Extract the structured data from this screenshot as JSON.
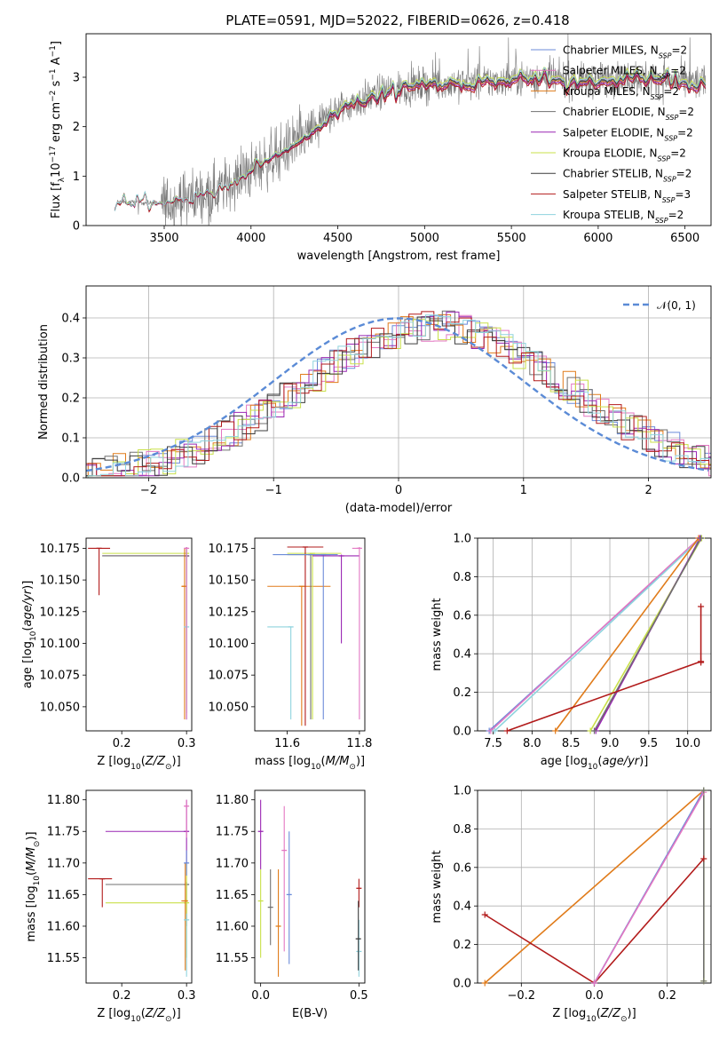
{
  "figure_title": "PLATE=0591, MJD=52022, FIBERID=0626, z=0.418",
  "colors": {
    "chabrier_miles": "#6b8bd9",
    "salpeter_miles": "#e377c2",
    "kroupa_miles": "#e07b1a",
    "chabrier_elodie": "#707070",
    "salpeter_elodie": "#9a27b3",
    "kroupa_elodie": "#c9e04a",
    "chabrier_stelib": "#3c3c3c",
    "salpeter_stelib": "#b21b1b",
    "kroupa_stelib": "#8fd3de",
    "gauss": "#5b8bd6"
  },
  "chart_data": [
    {
      "type": "line",
      "name": "spectrum",
      "title": "PLATE=0591, MJD=52022, FIBERID=0626, z=0.418",
      "xlabel": "wavelength [Angstrom, rest frame]",
      "ylabel": "Flux [f_λ 10^-17 erg cm^-2 s^-1 A^-1]",
      "xlim": [
        3050,
        6650
      ],
      "ylim": [
        0,
        3.88
      ],
      "xticks": [
        3500,
        4000,
        4500,
        5000,
        5500,
        6000,
        6500
      ],
      "yticks": [
        0,
        1,
        2,
        3
      ],
      "grid": false,
      "legend_position": "top-right",
      "data_continuum": [
        [
          3215,
          0.3
        ],
        [
          3230,
          0.48
        ],
        [
          3500,
          0.45
        ],
        [
          3800,
          0.7
        ],
        [
          4000,
          1.1
        ],
        [
          4300,
          1.75
        ],
        [
          4500,
          2.35
        ],
        [
          4800,
          2.75
        ],
        [
          5000,
          2.85
        ],
        [
          5300,
          2.9
        ],
        [
          5600,
          3.0
        ],
        [
          5900,
          2.92
        ],
        [
          6200,
          3.0
        ],
        [
          6500,
          2.9
        ]
      ],
      "series": [
        {
          "legend": "Chabrier MILES, N_SSP=2",
          "color_key": "chabrier_miles",
          "scale": 1.0
        },
        {
          "legend": "Salpeter MILES, N_SSP=2",
          "color_key": "salpeter_miles",
          "scale": 1.01
        },
        {
          "legend": "Kroupa MILES, N_SSP=2",
          "color_key": "kroupa_miles",
          "scale": 0.99
        },
        {
          "legend": "Chabrier ELODIE, N_SSP=2",
          "color_key": "chabrier_elodie",
          "scale": 1.0
        },
        {
          "legend": "Salpeter ELODIE, N_SSP=2",
          "color_key": "salpeter_elodie",
          "scale": 0.98
        },
        {
          "legend": "Kroupa ELODIE, N_SSP=2",
          "color_key": "kroupa_elodie",
          "scale": 1.02
        },
        {
          "legend": "Chabrier STELIB, N_SSP=2",
          "color_key": "chabrier_stelib",
          "scale": 1.0
        },
        {
          "legend": "Salpeter STELIB, N_SSP=3",
          "color_key": "salpeter_stelib",
          "scale": 0.97
        },
        {
          "legend": "Kroupa STELIB, N_SSP=2",
          "color_key": "kroupa_stelib",
          "scale": 1.01
        }
      ]
    },
    {
      "type": "histogram",
      "name": "residuals",
      "xlabel": "(data-model)/error",
      "ylabel": "Normed distribution",
      "xlim": [
        -2.5,
        2.5
      ],
      "ylim": [
        0,
        0.48
      ],
      "xticks": [
        -2,
        -1,
        0,
        1,
        2
      ],
      "yticks": [
        0.0,
        0.1,
        0.2,
        0.3,
        0.4
      ],
      "grid": true,
      "legend_position": "top-right",
      "gauss_legend": "N(0,1)",
      "bin_width": 0.1
    },
    {
      "type": "errorbar",
      "name": "age-vs-Z",
      "xlabel": "Z [log10(Z/Z⊙)]",
      "ylabel": "age  [log10(age/yr)]",
      "xlim": [
        0.145,
        0.308
      ],
      "ylim": [
        10.031,
        10.183
      ],
      "xticks": [
        0.2,
        0.3
      ],
      "yticks": [
        10.05,
        10.075,
        10.1,
        10.125,
        10.15,
        10.175
      ],
      "points": [
        {
          "c": "salpeter_stelib",
          "x": 0.165,
          "y": 10.175,
          "xl": 0.148,
          "xh": 0.182,
          "yl": 10.138,
          "yh": 10.175
        },
        {
          "c": "salpeter_elodie",
          "x": 0.3,
          "y": 10.169,
          "xl": 0.17,
          "xh": 0.3,
          "yl": 10.04,
          "yh": 10.176
        },
        {
          "c": "kroupa_elodie",
          "x": 0.3,
          "y": 10.171,
          "xl": 0.17,
          "xh": 0.3,
          "yl": 10.05,
          "yh": 10.176
        },
        {
          "c": "chabrier_elodie",
          "x": 0.3,
          "y": 10.169,
          "xl": 0.17,
          "xh": 0.3,
          "yl": 10.045,
          "yh": 10.176
        },
        {
          "c": "kroupa_miles",
          "x": 0.297,
          "y": 10.145,
          "xl": 0.292,
          "xh": 0.3,
          "yl": 10.04,
          "yh": 10.175
        },
        {
          "c": "kroupa_stelib",
          "x": 0.3,
          "y": 10.113,
          "xl": 0.299,
          "xh": 0.301,
          "yl": 10.04,
          "yh": 10.176
        },
        {
          "c": "salpeter_miles",
          "x": 0.3,
          "y": 10.175,
          "xl": 0.297,
          "xh": 0.302,
          "yl": 10.04,
          "yh": 10.176
        }
      ]
    },
    {
      "type": "errorbar",
      "name": "age-vs-mass",
      "xlabel": "mass [log10(M/M⊙)]",
      "xlim": [
        11.51,
        11.815
      ],
      "ylim": [
        10.031,
        10.183
      ],
      "xticks": [
        11.6,
        11.8
      ],
      "yticks": [
        10.05,
        10.075,
        10.1,
        10.125,
        10.15,
        10.175
      ],
      "points": [
        {
          "c": "kroupa_stelib",
          "x": 11.61,
          "y": 10.113,
          "xl": 11.545,
          "xh": 11.61,
          "yl": 10.04,
          "yh": 10.113
        },
        {
          "c": "kroupa_miles",
          "x": 11.64,
          "y": 10.145,
          "xl": 11.545,
          "xh": 11.72,
          "yl": 10.035,
          "yh": 10.145
        },
        {
          "c": "chabrier_elodie",
          "x": 11.665,
          "y": 10.17,
          "xl": 11.6,
          "xh": 11.72,
          "yl": 10.04,
          "yh": 10.171
        },
        {
          "c": "kroupa_elodie",
          "x": 11.67,
          "y": 10.171,
          "xl": 11.6,
          "xh": 11.75,
          "yl": 10.04,
          "yh": 10.171
        },
        {
          "c": "salpeter_stelib",
          "x": 11.65,
          "y": 10.176,
          "xl": 11.6,
          "xh": 11.7,
          "yl": 10.035,
          "yh": 10.176
        },
        {
          "c": "chabrier_miles",
          "x": 11.7,
          "y": 10.17,
          "xl": 11.56,
          "xh": 11.74,
          "yl": 10.04,
          "yh": 10.17
        },
        {
          "c": "salpeter_elodie",
          "x": 11.75,
          "y": 10.169,
          "xl": 11.67,
          "xh": 11.8,
          "yl": 10.1,
          "yh": 10.17
        },
        {
          "c": "salpeter_miles",
          "x": 11.8,
          "y": 10.175,
          "xl": 11.78,
          "xh": 11.8,
          "yl": 10.04,
          "yh": 10.176
        }
      ]
    },
    {
      "type": "line",
      "name": "weight-vs-age",
      "xlabel": "age  [log10(age/yr)]",
      "ylabel": "mass weight",
      "xlim": [
        7.3,
        10.3
      ],
      "ylim": [
        0,
        1.0
      ],
      "xticks": [
        7.5,
        8.0,
        8.5,
        9.0,
        9.5,
        10.0
      ],
      "yticks": [
        0.0,
        0.2,
        0.4,
        0.6,
        0.8,
        1.0
      ],
      "grid": true,
      "series": [
        {
          "c": "chabrier_miles",
          "x": [
            7.45,
            10.17
          ],
          "y": [
            0.0,
            1.0
          ]
        },
        {
          "c": "salpeter_miles",
          "x": [
            7.47,
            10.15
          ],
          "y": [
            0.0,
            1.0
          ]
        },
        {
          "c": "kroupa_stelib",
          "x": [
            7.52,
            10.17
          ],
          "y": [
            0.0,
            1.0
          ]
        },
        {
          "c": "kroupa_miles",
          "x": [
            8.3,
            10.14
          ],
          "y": [
            0.0,
            1.0
          ]
        },
        {
          "c": "kroupa_elodie",
          "x": [
            8.75,
            10.18
          ],
          "y": [
            0.0,
            1.0
          ]
        },
        {
          "c": "salpeter_elodie",
          "x": [
            8.82,
            10.16
          ],
          "y": [
            0.0,
            1.0
          ]
        },
        {
          "c": "chabrier_elodie",
          "x": [
            8.8,
            10.17
          ],
          "y": [
            0.0,
            1.0
          ]
        },
        {
          "c": "salpeter_stelib",
          "x": [
            7.68,
            10.17
          ],
          "y": [
            0.0,
            0.36
          ]
        },
        {
          "c": "salpeter_stelib",
          "x": [
            10.17,
            10.17
          ],
          "y": [
            0.355,
            0.645
          ]
        }
      ]
    },
    {
      "type": "errorbar",
      "name": "mass-vs-Z",
      "xlabel": "Z [log10(Z/Z⊙)]",
      "ylabel": "mass [log10(M/M⊙)]",
      "xlim": [
        0.145,
        0.308
      ],
      "ylim": [
        11.51,
        11.815
      ],
      "xticks": [
        0.2,
        0.3
      ],
      "yticks": [
        11.55,
        11.6,
        11.65,
        11.7,
        11.75,
        11.8
      ],
      "points": [
        {
          "c": "salpeter_stelib",
          "x": 0.17,
          "y": 11.675,
          "xl": 0.148,
          "xh": 0.185,
          "yl": 11.63,
          "yh": 11.675
        },
        {
          "c": "salpeter_elodie",
          "x": 0.3,
          "y": 11.75,
          "xl": 0.175,
          "xh": 0.3,
          "yl": 11.7,
          "yh": 11.8
        },
        {
          "c": "chabrier_elodie",
          "x": 0.3,
          "y": 11.666,
          "xl": 0.175,
          "xh": 0.3,
          "yl": 11.6,
          "yh": 11.67
        },
        {
          "c": "kroupa_elodie",
          "x": 0.3,
          "y": 11.637,
          "xl": 0.175,
          "xh": 0.3,
          "yl": 11.55,
          "yh": 11.7
        },
        {
          "c": "salpeter_miles",
          "x": 0.3,
          "y": 11.79,
          "xl": 0.297,
          "xh": 0.302,
          "yl": 11.74,
          "yh": 11.8
        },
        {
          "c": "kroupa_miles",
          "x": 0.298,
          "y": 11.64,
          "xl": 0.292,
          "xh": 0.302,
          "yl": 11.53,
          "yh": 11.7
        },
        {
          "c": "kroupa_stelib",
          "x": 0.3,
          "y": 11.61,
          "xl": 0.299,
          "xh": 0.301,
          "yl": 11.52,
          "yh": 11.62
        },
        {
          "c": "chabrier_miles",
          "x": 0.3,
          "y": 11.7,
          "xl": 0.298,
          "xh": 0.302,
          "yl": 11.68,
          "yh": 11.72
        }
      ]
    },
    {
      "type": "errorbar",
      "name": "mass-vs-ebv",
      "xlabel": "E(B-V)",
      "xlim": [
        -0.03,
        0.53
      ],
      "ylim": [
        11.51,
        11.815
      ],
      "xticks": [
        0.0,
        0.5
      ],
      "yticks": [
        11.55,
        11.6,
        11.65,
        11.7,
        11.75,
        11.8
      ],
      "points": [
        {
          "c": "salpeter_elodie",
          "x": 0.0,
          "y": 11.75,
          "xl": 0.0,
          "xh": 0.0,
          "yl": 11.69,
          "yh": 11.8
        },
        {
          "c": "kroupa_elodie",
          "x": 0.0,
          "y": 11.64,
          "xl": 0.0,
          "xh": 0.0,
          "yl": 11.55,
          "yh": 11.69
        },
        {
          "c": "chabrier_elodie",
          "x": 0.05,
          "y": 11.63,
          "xl": 0.05,
          "xh": 0.05,
          "yl": 11.57,
          "yh": 11.69
        },
        {
          "c": "kroupa_miles",
          "x": 0.09,
          "y": 11.6,
          "xl": 0.09,
          "xh": 0.09,
          "yl": 11.52,
          "yh": 11.69
        },
        {
          "c": "salpeter_miles",
          "x": 0.12,
          "y": 11.72,
          "xl": 0.12,
          "xh": 0.12,
          "yl": 11.56,
          "yh": 11.79
        },
        {
          "c": "chabrier_miles",
          "x": 0.145,
          "y": 11.65,
          "xl": 0.145,
          "xh": 0.145,
          "yl": 11.54,
          "yh": 11.75
        },
        {
          "c": "salpeter_stelib",
          "x": 0.5,
          "y": 11.66,
          "xl": 0.5,
          "xh": 0.5,
          "yl": 11.63,
          "yh": 11.675
        },
        {
          "c": "kroupa_stelib",
          "x": 0.5,
          "y": 11.56,
          "xl": 0.5,
          "xh": 0.5,
          "yl": 11.52,
          "yh": 11.61
        },
        {
          "c": "chabrier_stelib",
          "x": 0.497,
          "y": 11.58,
          "xl": 0.497,
          "xh": 0.497,
          "yl": 11.53,
          "yh": 11.64
        }
      ]
    },
    {
      "type": "line",
      "name": "weight-vs-Z",
      "xlabel": "Z [log10(Z/Z⊙)]",
      "ylabel": "mass weight",
      "xlim": [
        -0.32,
        0.32
      ],
      "ylim": [
        0,
        1.0
      ],
      "xticks": [
        -0.2,
        0.0,
        0.2
      ],
      "yticks": [
        0.0,
        0.2,
        0.4,
        0.6,
        0.8,
        1.0
      ],
      "grid": true,
      "series": [
        {
          "c": "kroupa_miles",
          "x": [
            -0.3,
            0.3
          ],
          "y": [
            0.0,
            1.0
          ]
        },
        {
          "c": "salpeter_stelib",
          "x": [
            -0.3,
            0.0,
            0.3
          ],
          "y": [
            0.355,
            0.0,
            0.645
          ]
        },
        {
          "c": "kroupa_stelib",
          "x": [
            0.0,
            0.3
          ],
          "y": [
            0.0,
            1.0
          ]
        },
        {
          "c": "chabrier_miles",
          "x": [
            0.0,
            0.3
          ],
          "y": [
            0.0,
            1.0
          ]
        },
        {
          "c": "salpeter_miles",
          "x": [
            0.0,
            0.3
          ],
          "y": [
            0.0,
            0.99
          ]
        },
        {
          "c": "kroupa_elodie",
          "x": [
            0.3,
            0.3
          ],
          "y": [
            0.01,
            1.0
          ]
        },
        {
          "c": "chabrier_elodie",
          "x": [
            0.3,
            0.3
          ],
          "y": [
            0.01,
            1.0
          ]
        }
      ]
    }
  ]
}
